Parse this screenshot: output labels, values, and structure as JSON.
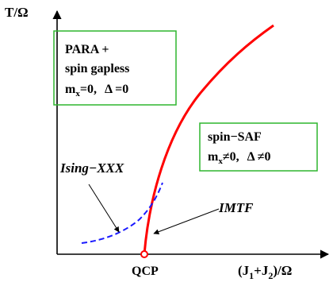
{
  "axes": {
    "y_label": "T/Ω",
    "x_label_main": "(J",
    "x_label_sub1": "1",
    "x_label_plus": "+J",
    "x_label_sub2": "2",
    "x_label_tail": ")/Ω",
    "origin_marker": "QCP"
  },
  "regions": {
    "para": {
      "line1": "PARA +",
      "line2": "spin gapless",
      "m_label": "m",
      "m_sub": "x",
      "m_value": "=0,",
      "delta_label": "Δ =0"
    },
    "saf": {
      "line1": "spin−SAF",
      "m_label": "m",
      "m_sub": "x",
      "m_value": "≠0,",
      "delta_label": "Δ ≠0"
    }
  },
  "curves": {
    "ising_label": "Ising−XXX",
    "imtf_label": "IMTF"
  },
  "colors": {
    "box_border": "#2fb52f",
    "imtf_curve": "#ff0000",
    "ising_curve": "#1a1aff",
    "axis": "#000000"
  }
}
